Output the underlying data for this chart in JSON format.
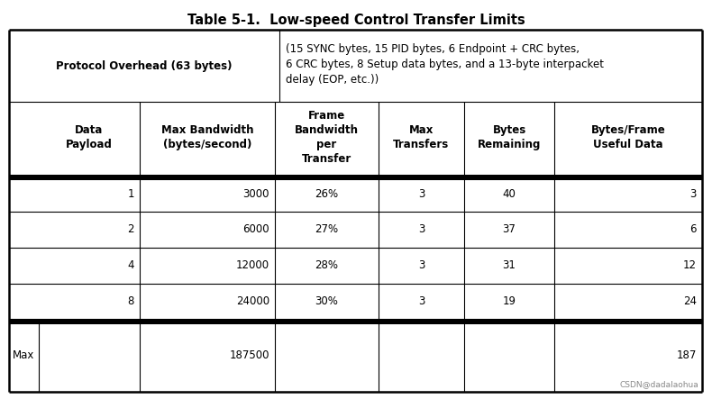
{
  "title": "Table 5-1.  Low-speed Control Transfer Limits",
  "title_fontsize": 10.5,
  "title_fontweight": "bold",
  "bg_color": "#ffffff",
  "protocol_overhead_label": "Protocol Overhead (63 bytes)",
  "protocol_overhead_desc": "(15 SYNC bytes, 15 PID bytes, 6 Endpoint + CRC bytes,\n6 CRC bytes, 8 Setup data bytes, and a 13-byte interpacket\ndelay (EOP, etc.))",
  "col_headers": [
    "Data\nPayload",
    "Max Bandwidth\n(bytes/second)",
    "Frame\nBandwidth\nper\nTransfer",
    "Max\nTransfers",
    "Bytes\nRemaining",
    "Bytes/Frame\nUseful Data"
  ],
  "data_rows": [
    [
      "1",
      "3000",
      "26%",
      "3",
      "40",
      "3"
    ],
    [
      "2",
      "6000",
      "27%",
      "3",
      "37",
      "6"
    ],
    [
      "4",
      "12000",
      "28%",
      "3",
      "31",
      "12"
    ],
    [
      "8",
      "24000",
      "30%",
      "3",
      "19",
      "24"
    ]
  ],
  "max_row_label": "Max",
  "max_row": [
    "",
    "187500",
    "",
    "",
    "",
    "187"
  ],
  "col_alignments": [
    "right",
    "right",
    "center",
    "center",
    "center",
    "right"
  ],
  "font_size": 8.5,
  "header_font_size": 8.5,
  "watermark": "CSDN@dadalaohua",
  "fig_width": 7.9,
  "fig_height": 4.43,
  "dpi": 100
}
